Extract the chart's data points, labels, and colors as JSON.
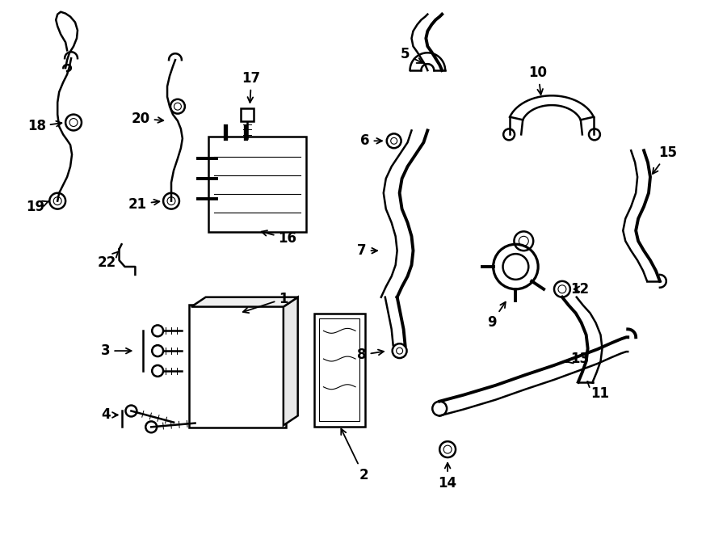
{
  "bg_color": "#ffffff",
  "line_color": "#000000",
  "fig_width": 9.0,
  "fig_height": 6.62,
  "dpi": 100
}
